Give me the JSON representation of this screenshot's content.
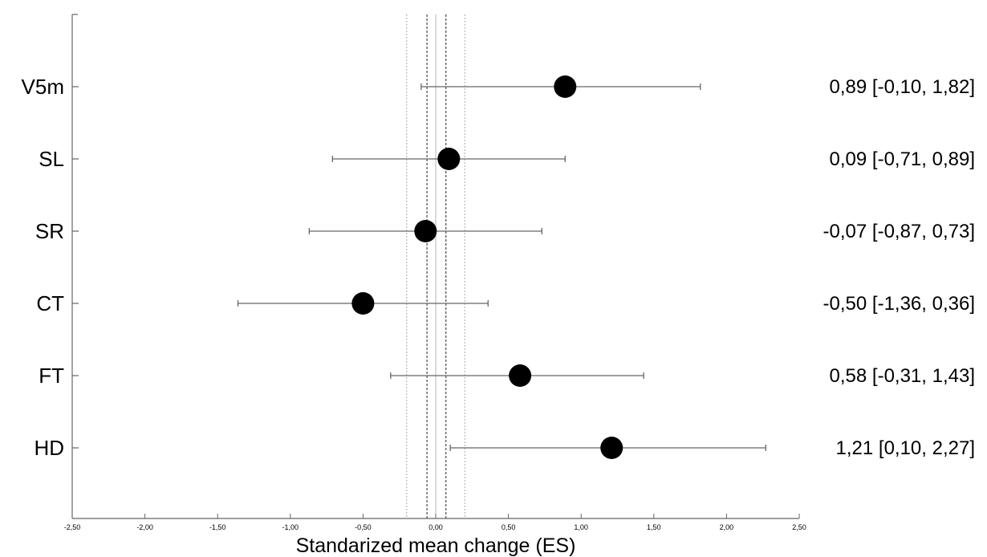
{
  "chart_data": {
    "type": "forest",
    "xlabel": "Standarized mean change (ES)",
    "xlim": [
      -2.5,
      2.5
    ],
    "x_ticks": [
      -2.5,
      -2.0,
      -1.5,
      -1.0,
      -0.5,
      0.0,
      0.5,
      1.0,
      1.5,
      2.0,
      2.5
    ],
    "x_tick_labels": [
      "-2,50",
      "-2,00",
      "-1,50",
      "-1,00",
      "-0,50",
      "0,00",
      "0,50",
      "1,00",
      "1,50",
      "2,00",
      "2,50"
    ],
    "reference_lines": [
      {
        "x": 0.0,
        "style": "thin-solid"
      },
      {
        "x": -0.06,
        "style": "dashed-dark"
      },
      {
        "x": 0.07,
        "style": "dashed-dark"
      },
      {
        "x": -0.2,
        "style": "dotted-light"
      },
      {
        "x": 0.2,
        "style": "dotted-light"
      }
    ],
    "rows": [
      {
        "label": "V5m",
        "es": 0.89,
        "lower": -0.1,
        "upper": 1.82,
        "text": "0,89 [-0,10, 1,82]"
      },
      {
        "label": "SL",
        "es": 0.09,
        "lower": -0.71,
        "upper": 0.89,
        "text": "0,09 [-0,71, 0,89]"
      },
      {
        "label": "SR",
        "es": -0.07,
        "lower": -0.87,
        "upper": 0.73,
        "text": "-0,07 [-0,87, 0,73]"
      },
      {
        "label": "CT",
        "es": -0.5,
        "lower": -1.36,
        "upper": 0.36,
        "text": "-0,50 [-1,36, 0,36]"
      },
      {
        "label": "FT",
        "es": 0.58,
        "lower": -0.31,
        "upper": 1.43,
        "text": "0,58 [-0,31, 1,43]"
      },
      {
        "label": "HD",
        "es": 1.21,
        "lower": 0.1,
        "upper": 2.27,
        "text": "1,21 [0,10, 2,27]"
      }
    ],
    "grid": false,
    "legend": "none"
  }
}
